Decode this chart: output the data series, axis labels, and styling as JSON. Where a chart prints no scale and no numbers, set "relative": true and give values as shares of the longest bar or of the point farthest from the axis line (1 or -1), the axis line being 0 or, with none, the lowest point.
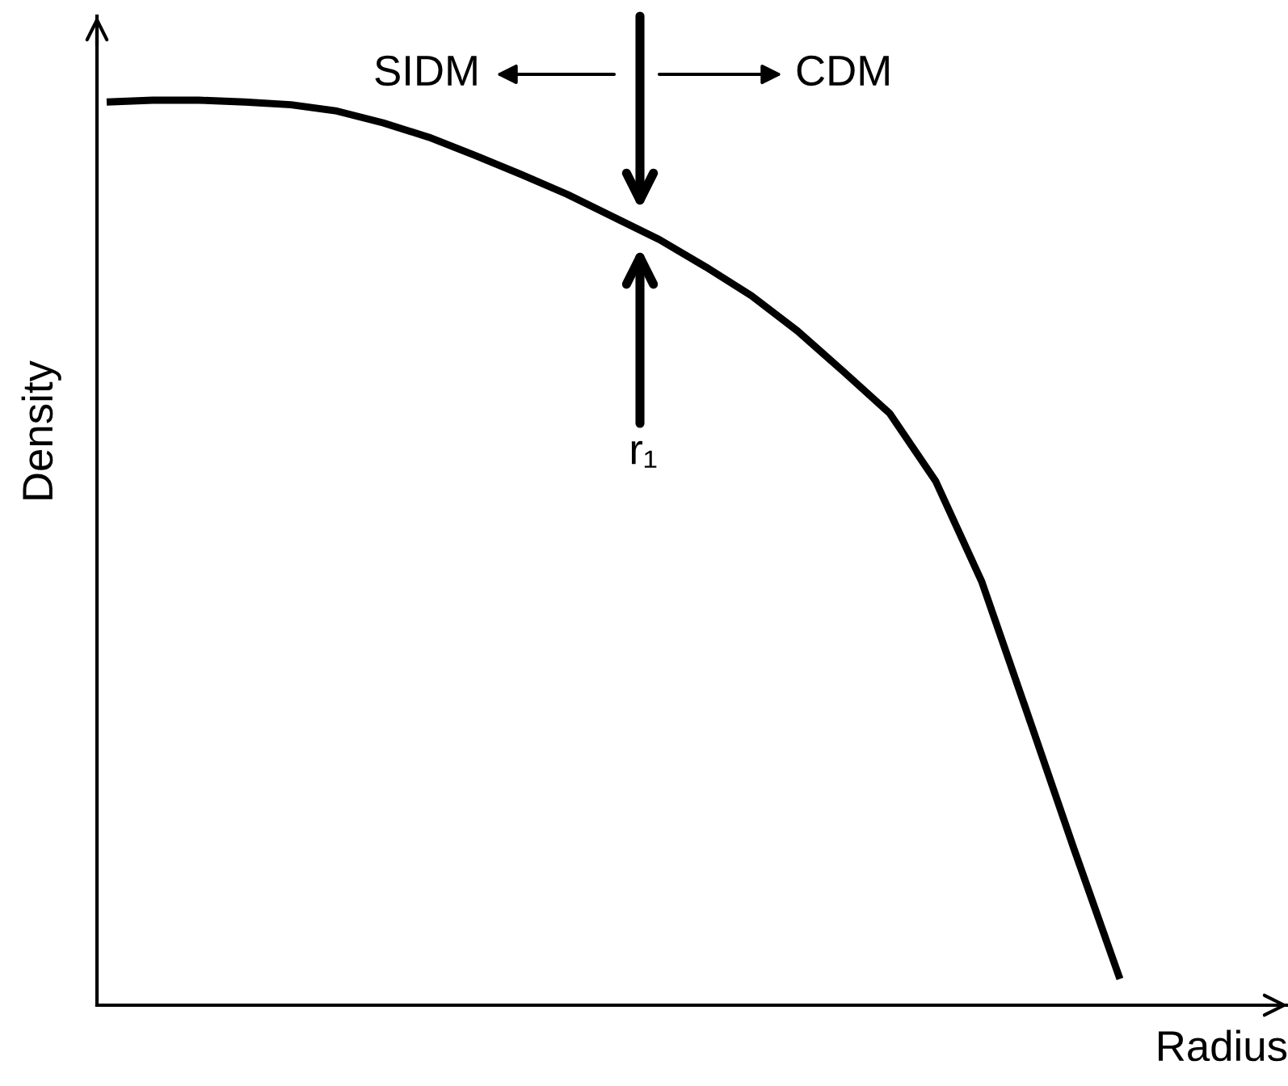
{
  "chart_data": {
    "type": "line",
    "relative": true,
    "xlabel": "Radius",
    "ylabel": "Density",
    "categories": [
      null,
      null,
      null,
      null,
      null,
      null,
      null,
      null,
      null,
      null,
      null,
      null,
      null,
      null,
      null,
      null,
      null,
      null,
      null,
      null,
      null,
      null,
      null
    ],
    "series": [
      {
        "color": "#000000",
        "values": [
          0.998,
          1,
          1,
          0.998,
          0.995,
          0.988,
          0.975,
          0.959,
          0.939,
          0.918,
          0.896,
          0.871,
          0.846,
          0.816,
          0.784,
          0.745,
          0.7,
          0.654,
          0.579,
          0.468,
          0.321,
          0.173,
          0.029
        ]
      }
    ],
    "annotations": [
      "SIDM",
      "CDM",
      "r₁"
    ],
    "marker": "none",
    "line_style": "solid"
  }
}
